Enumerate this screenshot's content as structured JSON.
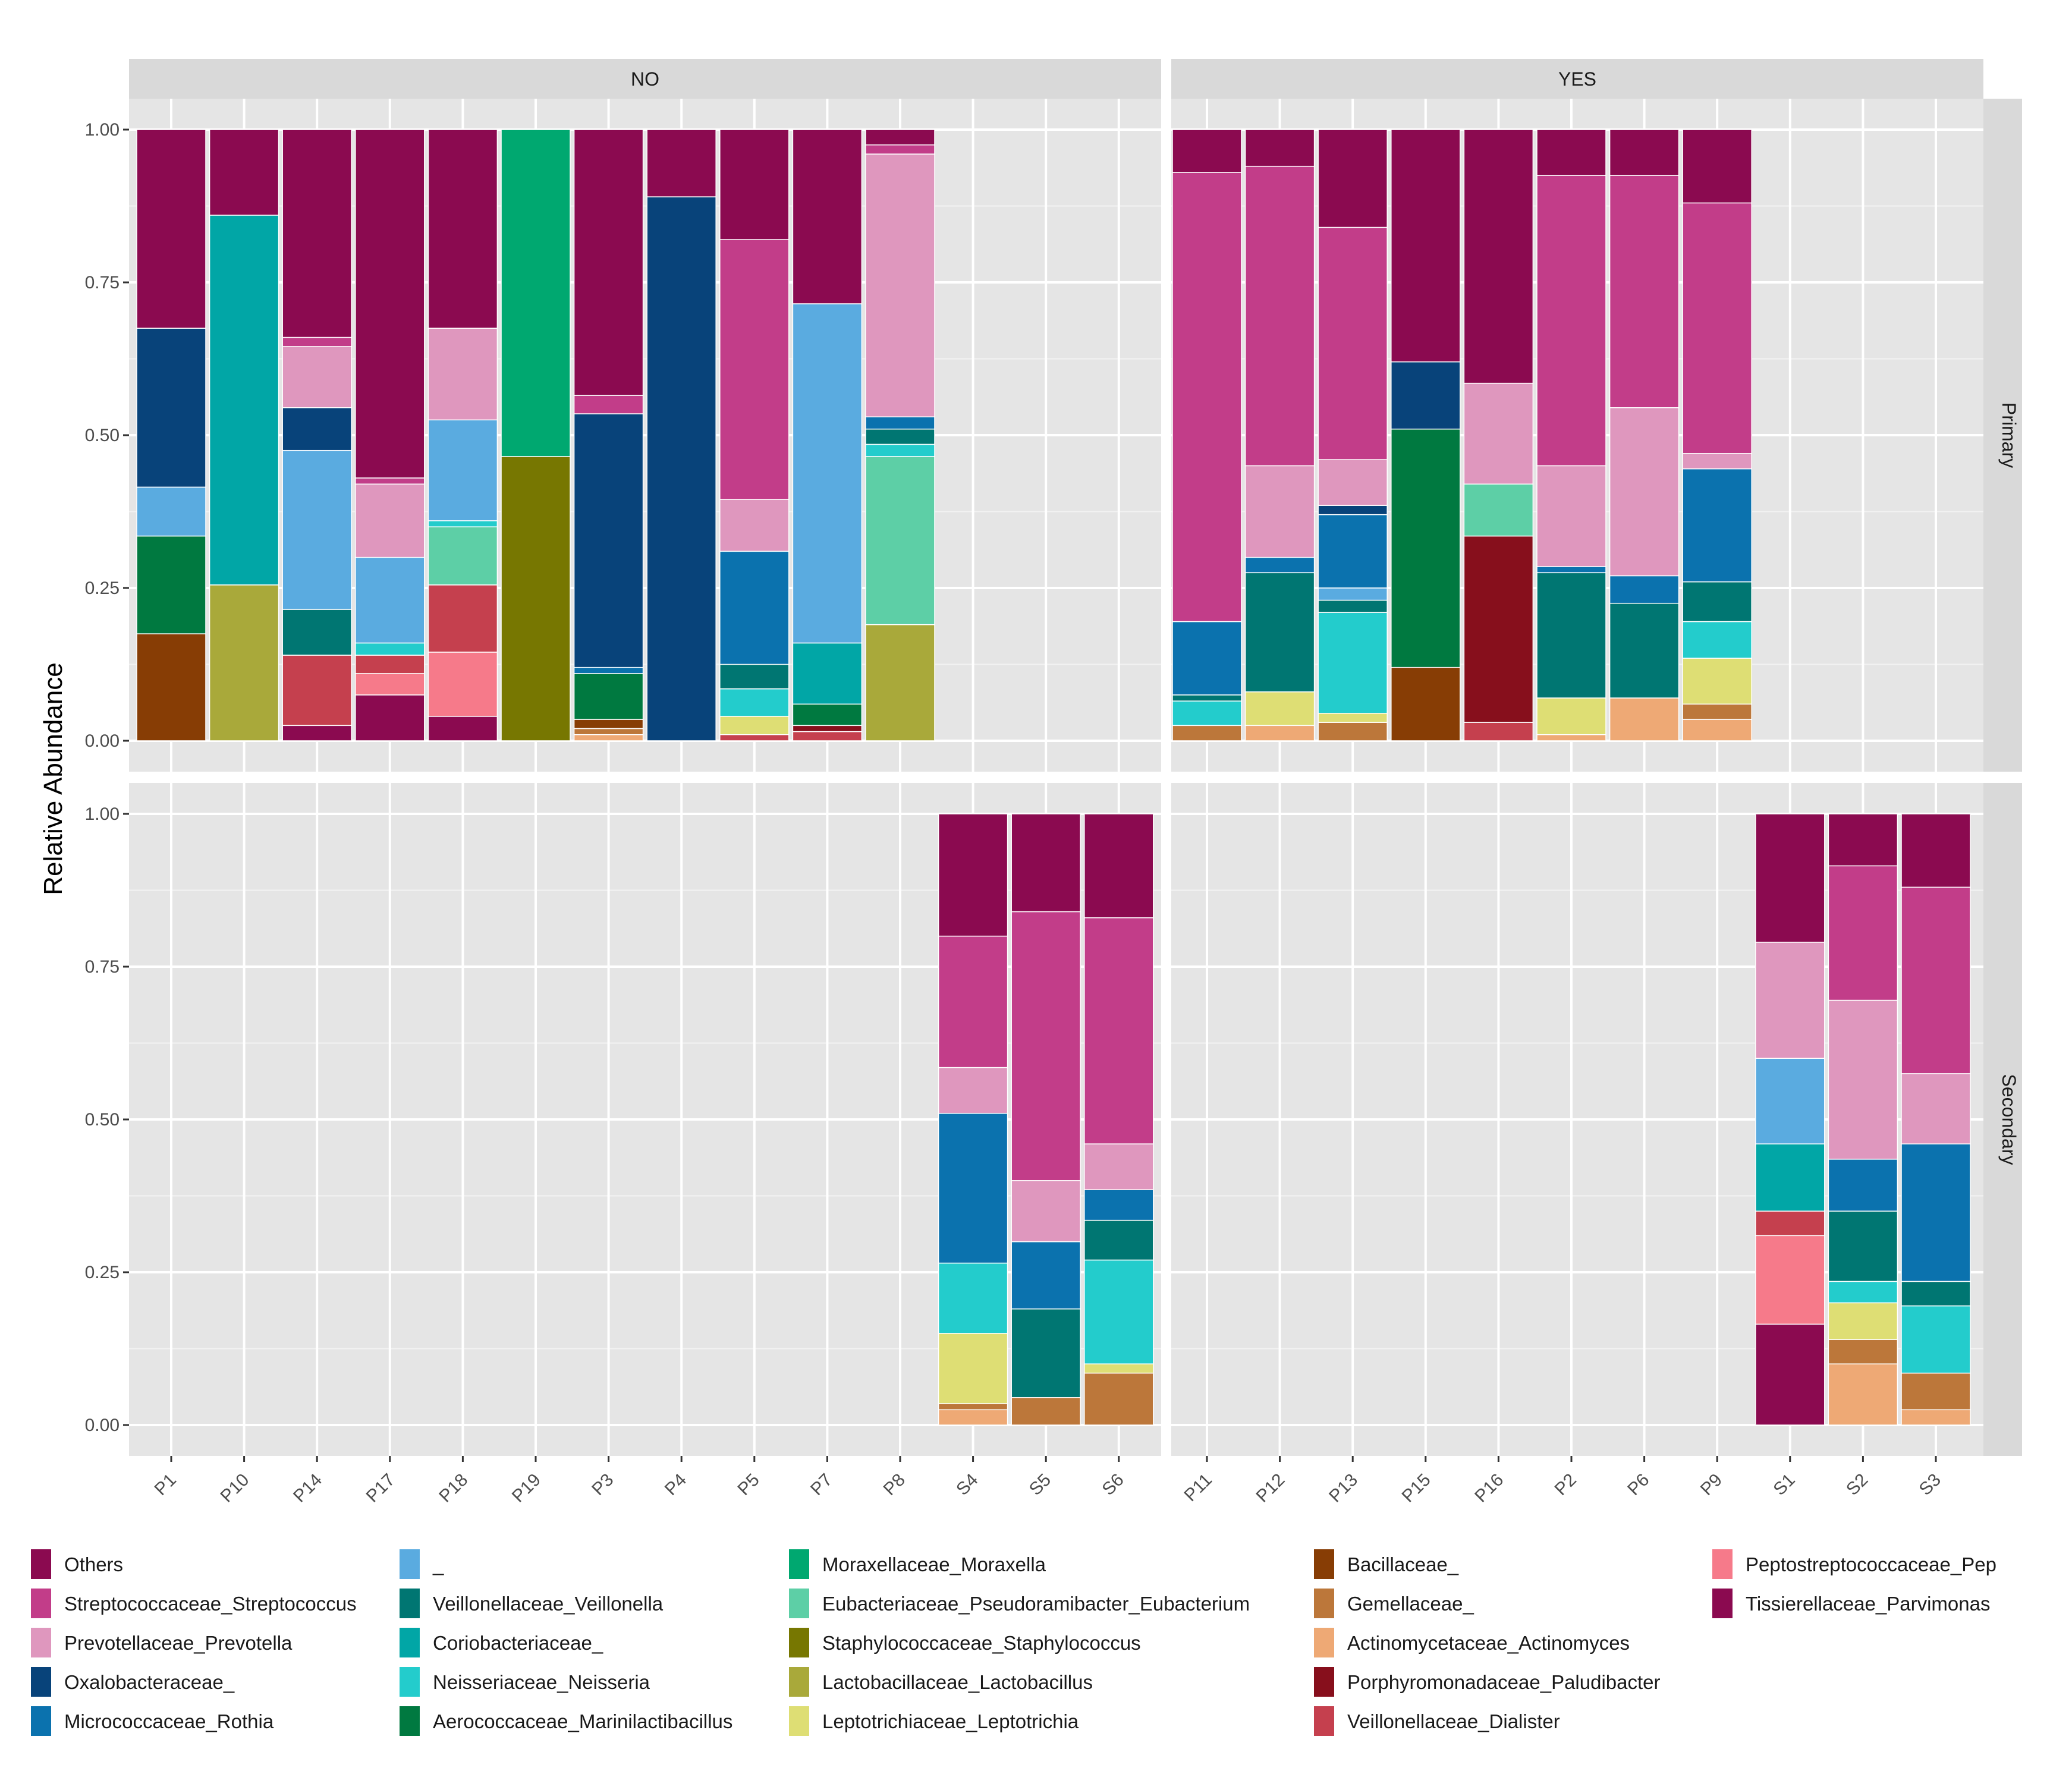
{
  "chart_data": {
    "type": "bar",
    "stacked": true,
    "ylabel": "Relative Abundance",
    "ylim": [
      0,
      1
    ],
    "y_ticks": [
      "0.00",
      "0.25",
      "0.50",
      "0.75",
      "1.00"
    ],
    "facet_cols": [
      "NO",
      "YES"
    ],
    "facet_rows": [
      "Primary",
      "Secondary"
    ],
    "categories": {
      "NO": [
        "P1",
        "P10",
        "P14",
        "P17",
        "P18",
        "P19",
        "P3",
        "P4",
        "P5",
        "P7",
        "P8",
        "S4",
        "S5",
        "S6"
      ],
      "YES": [
        "P11",
        "P12",
        "P13",
        "P15",
        "P16",
        "P2",
        "P6",
        "P9",
        "S1",
        "S2",
        "S3"
      ]
    },
    "legend": [
      {
        "name": "Others",
        "color": "#8B0A50"
      },
      {
        "name": "Streptococcaceae_Streptococcus",
        "color": "#C23D89"
      },
      {
        "name": "Prevotellaceae_Prevotella",
        "color": "#DF97BE"
      },
      {
        "name": "Oxalobacteraceae_",
        "color": "#08437A"
      },
      {
        "name": "Micrococcaceae_Rothia",
        "color": "#0B72AE"
      },
      {
        "name": "_",
        "color": "#5AABE0"
      },
      {
        "name": "Veillonellaceae_Veillonella",
        "color": "#007672"
      },
      {
        "name": "Coriobacteriaceae_",
        "color": "#01A6A6"
      },
      {
        "name": "Neisseriaceae_Neisseria",
        "color": "#23CCCC"
      },
      {
        "name": "Aerococcaceae_Marinilactibacillus",
        "color": "#007940"
      },
      {
        "name": "Moraxellaceae_Moraxella",
        "color": "#00A870"
      },
      {
        "name": "Eubacteriaceae_Pseudoramibacter_Eubacterium",
        "color": "#5DCFA6"
      },
      {
        "name": "Staphylococcaceae_Staphylococcus",
        "color": "#777701"
      },
      {
        "name": "Lactobacillaceae_Lactobacillus",
        "color": "#A9A93A"
      },
      {
        "name": "Leptotrichiaceae_Leptotrichia",
        "color": "#DEDE74"
      },
      {
        "name": "Bacillaceae_",
        "color": "#873D05"
      },
      {
        "name": "Gemellaceae_",
        "color": "#BC773A"
      },
      {
        "name": "Actinomycetaceae_Actinomyces",
        "color": "#EEA975"
      },
      {
        "name": "Porphyromonadaceae_Paludibacter",
        "color": "#870F1C"
      },
      {
        "name": "Veillonellaceae_Dialister",
        "color": "#C5404E"
      },
      {
        "name": "Peptostreptococcaceae_Pep",
        "color": "#F67A8A"
      },
      {
        "name": "Tissierellaceae_Parvimonas",
        "color": "#8B0A50"
      }
    ],
    "series_order": [
      "Tissierellaceae_Parvimonas",
      "Peptostreptococcaceae_Pep",
      "Veillonellaceae_Dialister",
      "Porphyromonadaceae_Paludibacter",
      "Actinomycetaceae_Actinomyces",
      "Gemellaceae_",
      "Bacillaceae_",
      "Leptotrichiaceae_Leptotrichia",
      "Lactobacillaceae_Lactobacillus",
      "Staphylococcaceae_Staphylococcus",
      "Eubacteriaceae_Pseudoramibacter_Eubacterium",
      "Moraxellaceae_Moraxella",
      "Aerococcaceae_Marinilactibacillus",
      "Neisseriaceae_Neisseria",
      "Coriobacteriaceae_",
      "Veillonellaceae_Veillonella",
      "_",
      "Micrococcaceae_Rothia",
      "Oxalobacteraceae_",
      "Prevotellaceae_Prevotella",
      "Streptococcaceae_Streptococcus",
      "Others"
    ],
    "panels": {
      "NO|Primary": {
        "P1": {
          "Bacillaceae_": 0.175,
          "Aerococcaceae_Marinilactibacillus": 0.16,
          "_": 0.08,
          "Oxalobacteraceae_": 0.26,
          "Others": 0.325
        },
        "P10": {
          "Lactobacillaceae_Lactobacillus": 0.255,
          "Coriobacteriaceae_": 0.605,
          "Others": 0.14
        },
        "P14": {
          "Tissierellaceae_Parvimonas": 0.025,
          "Veillonellaceae_Dialister": 0.115,
          "Veillonellaceae_Veillonella": 0.075,
          "_": 0.26,
          "Oxalobacteraceae_": 0.07,
          "Prevotellaceae_Prevotella": 0.1,
          "Streptococcaceae_Streptococcus": 0.015,
          "Others": 0.34
        },
        "P17": {
          "Tissierellaceae_Parvimonas": 0.075,
          "Peptostreptococcaceae_Pep": 0.035,
          "Veillonellaceae_Dialister": 0.03,
          "Neisseriaceae_Neisseria": 0.02,
          "_": 0.14,
          "Prevotellaceae_Prevotella": 0.12,
          "Streptococcaceae_Streptococcus": 0.01,
          "Others": 0.57
        },
        "P18": {
          "Tissierellaceae_Parvimonas": 0.04,
          "Peptostreptococcaceae_Pep": 0.105,
          "Veillonellaceae_Dialister": 0.11,
          "Eubacteriaceae_Pseudoramibacter_Eubacterium": 0.095,
          "Neisseriaceae_Neisseria": 0.01,
          "_": 0.165,
          "Prevotellaceae_Prevotella": 0.15,
          "Others": 0.325
        },
        "P19": {
          "Staphylococcaceae_Staphylococcus": 0.465,
          "Moraxellaceae_Moraxella": 0.535
        },
        "P3": {
          "Actinomycetaceae_Actinomyces": 0.01,
          "Gemellaceae_": 0.01,
          "Bacillaceae_": 0.015,
          "Aerococcaceae_Marinilactibacillus": 0.075,
          "Micrococcaceae_Rothia": 0.01,
          "Oxalobacteraceae_": 0.415,
          "Streptococcaceae_Streptococcus": 0.03,
          "Others": 0.435
        },
        "P4": {
          "Oxalobacteraceae_": 0.89,
          "Others": 0.11
        },
        "P5": {
          "Veillonellaceae_Dialister": 0.01,
          "Leptotrichiaceae_Leptotrichia": 0.03,
          "Neisseriaceae_Neisseria": 0.045,
          "Veillonellaceae_Veillonella": 0.04,
          "Micrococcaceae_Rothia": 0.185,
          "Prevotellaceae_Prevotella": 0.085,
          "Streptococcaceae_Streptococcus": 0.425,
          "Others": 0.18
        },
        "P7": {
          "Veillonellaceae_Dialister": 0.015,
          "Porphyromonadaceae_Paludibacter": 0.01,
          "Aerococcaceae_Marinilactibacillus": 0.035,
          "Coriobacteriaceae_": 0.1,
          "_": 0.555,
          "Others": 0.285
        },
        "P8": {
          "Lactobacillaceae_Lactobacillus": 0.19,
          "Eubacteriaceae_Pseudoramibacter_Eubacterium": 0.275,
          "Neisseriaceae_Neisseria": 0.02,
          "Veillonellaceae_Veillonella": 0.025,
          "Micrococcaceae_Rothia": 0.02,
          "Prevotellaceae_Prevotella": 0.43,
          "Streptococcaceae_Streptococcus": 0.015,
          "Others": 0.025
        }
      },
      "NO|Secondary": {
        "S4": {
          "Actinomycetaceae_Actinomyces": 0.025,
          "Gemellaceae_": 0.01,
          "Leptotrichiaceae_Leptotrichia": 0.115,
          "Neisseriaceae_Neisseria": 0.115,
          "Micrococcaceae_Rothia": 0.245,
          "Prevotellaceae_Prevotella": 0.075,
          "Streptococcaceae_Streptococcus": 0.215,
          "Others": 0.2
        },
        "S5": {
          "Gemellaceae_": 0.045,
          "Veillonellaceae_Veillonella": 0.145,
          "Micrococcaceae_Rothia": 0.11,
          "Prevotellaceae_Prevotella": 0.1,
          "Streptococcaceae_Streptococcus": 0.44,
          "Others": 0.16
        },
        "S6": {
          "Gemellaceae_": 0.085,
          "Leptotrichiaceae_Leptotrichia": 0.015,
          "Neisseriaceae_Neisseria": 0.17,
          "Veillonellaceae_Veillonella": 0.065,
          "Micrococcaceae_Rothia": 0.05,
          "Prevotellaceae_Prevotella": 0.075,
          "Streptococcaceae_Streptococcus": 0.37,
          "Others": 0.17
        }
      },
      "YES|Primary": {
        "P11": {
          "Gemellaceae_": 0.025,
          "Neisseriaceae_Neisseria": 0.04,
          "Veillonellaceae_Veillonella": 0.01,
          "Micrococcaceae_Rothia": 0.12,
          "Streptococcaceae_Streptococcus": 0.735,
          "Others": 0.07
        },
        "P12": {
          "Actinomycetaceae_Actinomyces": 0.025,
          "Leptotrichiaceae_Leptotrichia": 0.055,
          "Veillonellaceae_Veillonella": 0.195,
          "Micrococcaceae_Rothia": 0.025,
          "Prevotellaceae_Prevotella": 0.15,
          "Streptococcaceae_Streptococcus": 0.49,
          "Others": 0.06
        },
        "P13": {
          "Gemellaceae_": 0.03,
          "Leptotrichiaceae_Leptotrichia": 0.015,
          "Neisseriaceae_Neisseria": 0.165,
          "Veillonellaceae_Veillonella": 0.02,
          "_": 0.02,
          "Micrococcaceae_Rothia": 0.12,
          "Oxalobacteraceae_": 0.015,
          "Prevotellaceae_Prevotella": 0.075,
          "Streptococcaceae_Streptococcus": 0.38,
          "Others": 0.16
        },
        "P15": {
          "Bacillaceae_": 0.12,
          "Aerococcaceae_Marinilactibacillus": 0.39,
          "Oxalobacteraceae_": 0.11,
          "Others": 0.38
        },
        "P16": {
          "Veillonellaceae_Dialister": 0.03,
          "Porphyromonadaceae_Paludibacter": 0.305,
          "Eubacteriaceae_Pseudoramibacter_Eubacterium": 0.085,
          "Prevotellaceae_Prevotella": 0.165,
          "Others": 0.415
        },
        "P2": {
          "Actinomycetaceae_Actinomyces": 0.01,
          "Leptotrichiaceae_Leptotrichia": 0.06,
          "Veillonellaceae_Veillonella": 0.205,
          "Micrococcaceae_Rothia": 0.01,
          "Prevotellaceae_Prevotella": 0.165,
          "Streptococcaceae_Streptococcus": 0.475,
          "Others": 0.075
        },
        "P6": {
          "Actinomycetaceae_Actinomyces": 0.07,
          "Veillonellaceae_Veillonella": 0.155,
          "Micrococcaceae_Rothia": 0.045,
          "Prevotellaceae_Prevotella": 0.275,
          "Streptococcaceae_Streptococcus": 0.38,
          "Others": 0.075
        },
        "P9": {
          "Actinomycetaceae_Actinomyces": 0.035,
          "Gemellaceae_": 0.025,
          "Leptotrichiaceae_Leptotrichia": 0.075,
          "Neisseriaceae_Neisseria": 0.06,
          "Veillonellaceae_Veillonella": 0.065,
          "Micrococcaceae_Rothia": 0.185,
          "Prevotellaceae_Prevotella": 0.025,
          "Streptococcaceae_Streptococcus": 0.41,
          "Others": 0.12
        }
      },
      "YES|Secondary": {
        "S1": {
          "Tissierellaceae_Parvimonas": 0.165,
          "Peptostreptococcaceae_Pep": 0.145,
          "Veillonellaceae_Dialister": 0.04,
          "Coriobacteriaceae_": 0.11,
          "_": 0.14,
          "Prevotellaceae_Prevotella": 0.19,
          "Others": 0.21
        },
        "S2": {
          "Actinomycetaceae_Actinomyces": 0.1,
          "Gemellaceae_": 0.04,
          "Leptotrichiaceae_Leptotrichia": 0.06,
          "Neisseriaceae_Neisseria": 0.035,
          "Veillonellaceae_Veillonella": 0.115,
          "Micrococcaceae_Rothia": 0.085,
          "Prevotellaceae_Prevotella": 0.26,
          "Streptococcaceae_Streptococcus": 0.22,
          "Others": 0.085
        },
        "S3": {
          "Actinomycetaceae_Actinomyces": 0.025,
          "Gemellaceae_": 0.06,
          "Neisseriaceae_Neisseria": 0.11,
          "Veillonellaceae_Veillonella": 0.04,
          "Micrococcaceae_Rothia": 0.225,
          "Prevotellaceae_Prevotella": 0.115,
          "Streptococcaceae_Streptococcus": 0.305,
          "Others": 0.12
        }
      }
    }
  }
}
